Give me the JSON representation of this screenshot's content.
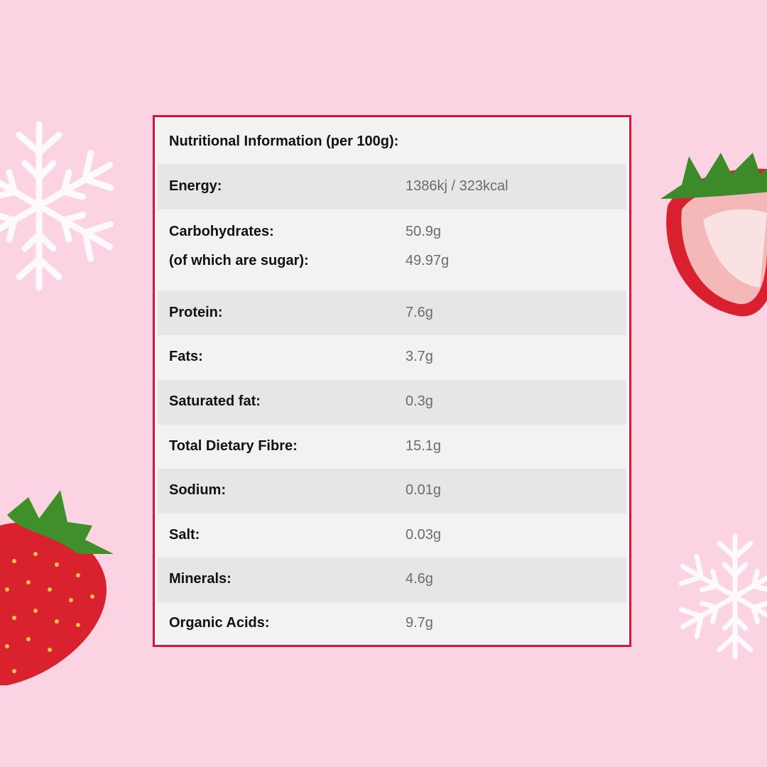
{
  "title": "Nutritional Information (per 100g):",
  "rows": [
    {
      "label": "Energy:",
      "value": "1386kj / 323kcal"
    },
    {
      "label": "Carbohydrates:",
      "value": "50.9g",
      "sub_label": "(of which are sugar):",
      "sub_value": "49.97g"
    },
    {
      "label": "Protein:",
      "value": "7.6g"
    },
    {
      "label": "Fats:",
      "value": "3.7g"
    },
    {
      "label": "Saturated fat:",
      "value": "0.3g"
    },
    {
      "label": "Total Dietary Fibre:",
      "value": "15.1g"
    },
    {
      "label": "Sodium:",
      "value": "0.01g"
    },
    {
      "label": "Salt:",
      "value": "0.03g"
    },
    {
      "label": "Minerals:",
      "value": "4.6g"
    },
    {
      "label": "Organic Acids:",
      "value": "9.7g"
    }
  ],
  "colors": {
    "background": "#fbd3e3",
    "border": "#d8163c",
    "row_light": "#f2f2f2",
    "row_dark": "#e6e6e6"
  }
}
